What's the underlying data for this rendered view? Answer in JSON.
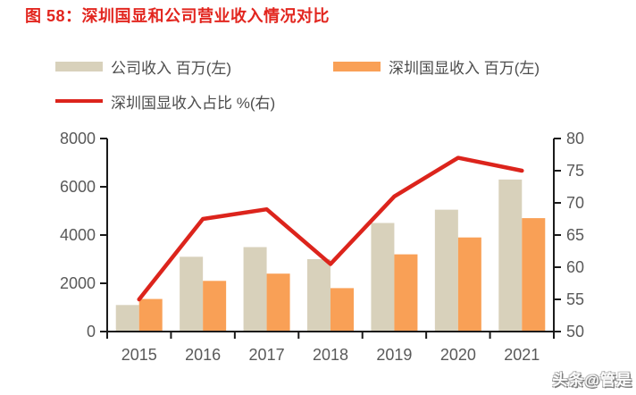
{
  "title": "图 58：深圳国显和公司营业收入情况对比",
  "watermark": "头条@管是",
  "colors": {
    "title_red": "#e2261f",
    "company_bar": "#d8d1bb",
    "guoxian_bar": "#f9a056",
    "ratio_line": "#dc241c",
    "axis_text": "#595959",
    "axis_line": "#1a1a1a"
  },
  "legend": [
    {
      "label": "公司收入 百万(左)",
      "type": "bar"
    },
    {
      "label": "深圳国显收入 百万(左)",
      "type": "bar"
    },
    {
      "label": "深圳国显收入占比 %(右)",
      "type": "line"
    }
  ],
  "chart_data": {
    "type": "bar",
    "subtype": "bar+line combo, dual axis",
    "title": "深圳国显和公司营业收入情况对比",
    "categories": [
      "2015",
      "2016",
      "2017",
      "2018",
      "2019",
      "2020",
      "2021"
    ],
    "series": [
      {
        "name": "公司收入 百万(左)",
        "type": "bar",
        "axis": "left",
        "values": [
          1100,
          3100,
          3500,
          3000,
          4500,
          5050,
          6300
        ]
      },
      {
        "name": "深圳国显收入 百万(左)",
        "type": "bar",
        "axis": "left",
        "values": [
          1350,
          2100,
          2400,
          1800,
          3200,
          3900,
          4700
        ]
      },
      {
        "name": "深圳国显收入占比 %(右)",
        "type": "line",
        "axis": "right",
        "values": [
          55,
          67.5,
          69,
          60.5,
          71,
          77,
          75
        ]
      }
    ],
    "left_axis": {
      "label": "百万",
      "min": 0,
      "max": 8000,
      "ticks": [
        0,
        2000,
        4000,
        6000,
        8000
      ]
    },
    "right_axis": {
      "label": "%",
      "min": 50,
      "max": 80,
      "ticks": [
        50,
        55,
        60,
        65,
        70,
        75,
        80
      ]
    },
    "grid": false,
    "legend_position": "top-left"
  }
}
